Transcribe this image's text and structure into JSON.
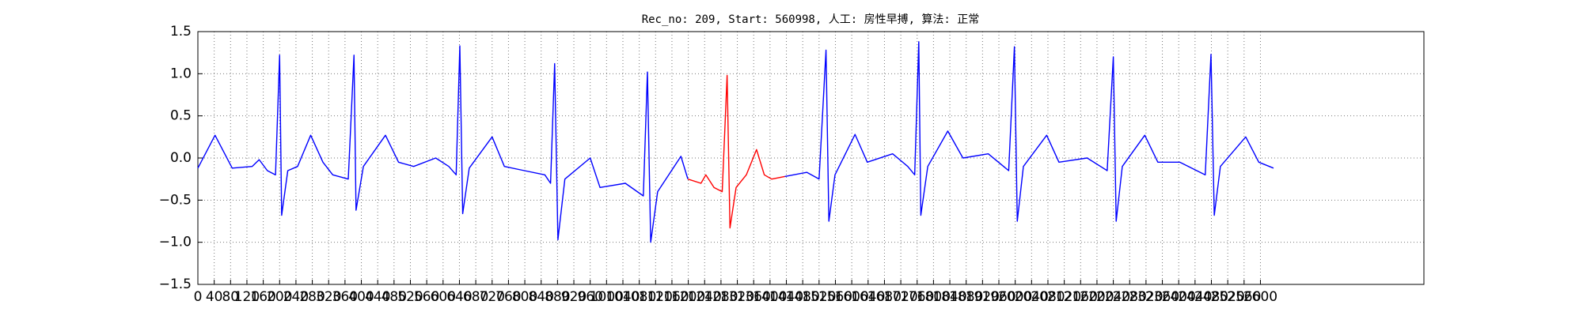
{
  "chart_data": {
    "type": "line",
    "title": "Rec_no: 209, Start: 560998, 人工: 房性早搏, 算法: 正常",
    "xlim": [
      0,
      3000
    ],
    "xticks": [
      0,
      40,
      80,
      120,
      160,
      200,
      240,
      280,
      320,
      360,
      400,
      440,
      480,
      520,
      560,
      600,
      640,
      680,
      720,
      760,
      800,
      840,
      880,
      920,
      960,
      1000,
      1040,
      1080,
      1120,
      1160,
      1200,
      1240,
      1280,
      1320,
      1360,
      1400,
      1440,
      1480,
      1520,
      1560,
      1600,
      1640,
      1680,
      1720,
      1760,
      1800,
      1840,
      1880,
      1920,
      1960,
      2000,
      2040,
      2080,
      2120,
      2160,
      2200,
      2240,
      2280,
      2320,
      2360,
      2400,
      2440,
      2480,
      2520,
      2560,
      2600
    ],
    "ylim": [
      -1.5,
      1.5
    ],
    "yticks": [
      {
        "value": -1.5,
        "label": "−1.5"
      },
      {
        "value": -1,
        "label": "−1.0"
      },
      {
        "value": -0.5,
        "label": "−0.5"
      },
      {
        "value": 0,
        "label": "0.0"
      },
      0.5,
      {
        "value": 1,
        "label": "1.0"
      },
      1.5
    ],
    "grid": true,
    "series": [
      {
        "color": "#0000ff",
        "x": [
          0,
          42,
          84,
          133,
          150,
          170,
          190,
          200,
          205,
          220,
          244,
          276,
          306,
          330,
          368,
          382,
          387,
          405,
          459,
          491,
          528,
          582,
          614,
          632,
          641,
          648,
          664,
          720,
          750,
          799,
          849,
          863,
          873,
          881,
          898,
          960,
          984,
          1046,
          1090,
          1100,
          1108,
          1125,
          1182,
          1199
        ],
        "values": [
          -0.12,
          0.27,
          -0.12,
          -0.1,
          -0.02,
          -0.15,
          -0.2,
          1.22,
          -0.68,
          -0.15,
          -0.1,
          0.27,
          -0.05,
          -0.2,
          -0.25,
          1.22,
          -0.62,
          -0.1,
          0.27,
          -0.05,
          -0.1,
          0.0,
          -0.1,
          -0.2,
          1.33,
          -0.66,
          -0.12,
          0.25,
          -0.1,
          -0.15,
          -0.2,
          -0.3,
          1.12,
          -0.97,
          -0.25,
          0.0,
          -0.35,
          -0.3,
          -0.45,
          1.02,
          -1.0,
          -0.4,
          0.02,
          -0.25
        ]
      },
      {
        "color": "#ff0000",
        "x": [
          1199,
          1231,
          1243,
          1263,
          1283,
          1295,
          1302,
          1317,
          1342,
          1367,
          1386,
          1404,
          1436
        ],
        "values": [
          -0.25,
          -0.3,
          -0.2,
          -0.35,
          -0.4,
          0.98,
          -0.83,
          -0.35,
          -0.2,
          0.1,
          -0.2,
          -0.25,
          -0.22
        ]
      },
      {
        "color": "#0000ff",
        "x": [
          1436,
          1490,
          1520,
          1537,
          1544,
          1559,
          1608,
          1638,
          1700,
          1737,
          1754,
          1764,
          1769,
          1786,
          1835,
          1872,
          1934,
          1984,
          1998,
          2005,
          2020,
          2077,
          2107,
          2176,
          2225,
          2240,
          2247,
          2262,
          2317,
          2349,
          2403,
          2465,
          2479,
          2487,
          2502,
          2564,
          2596,
          2632
        ],
        "values": [
          -0.22,
          -0.17,
          -0.25,
          1.28,
          -0.75,
          -0.2,
          0.28,
          -0.05,
          0.05,
          -0.1,
          -0.2,
          1.38,
          -0.68,
          -0.1,
          0.32,
          0.0,
          0.05,
          -0.15,
          1.32,
          -0.75,
          -0.1,
          0.27,
          -0.05,
          0.0,
          -0.15,
          1.2,
          -0.75,
          -0.1,
          0.27,
          -0.05,
          -0.05,
          -0.2,
          1.23,
          -0.68,
          -0.1,
          0.25,
          -0.05,
          -0.12
        ]
      }
    ]
  }
}
